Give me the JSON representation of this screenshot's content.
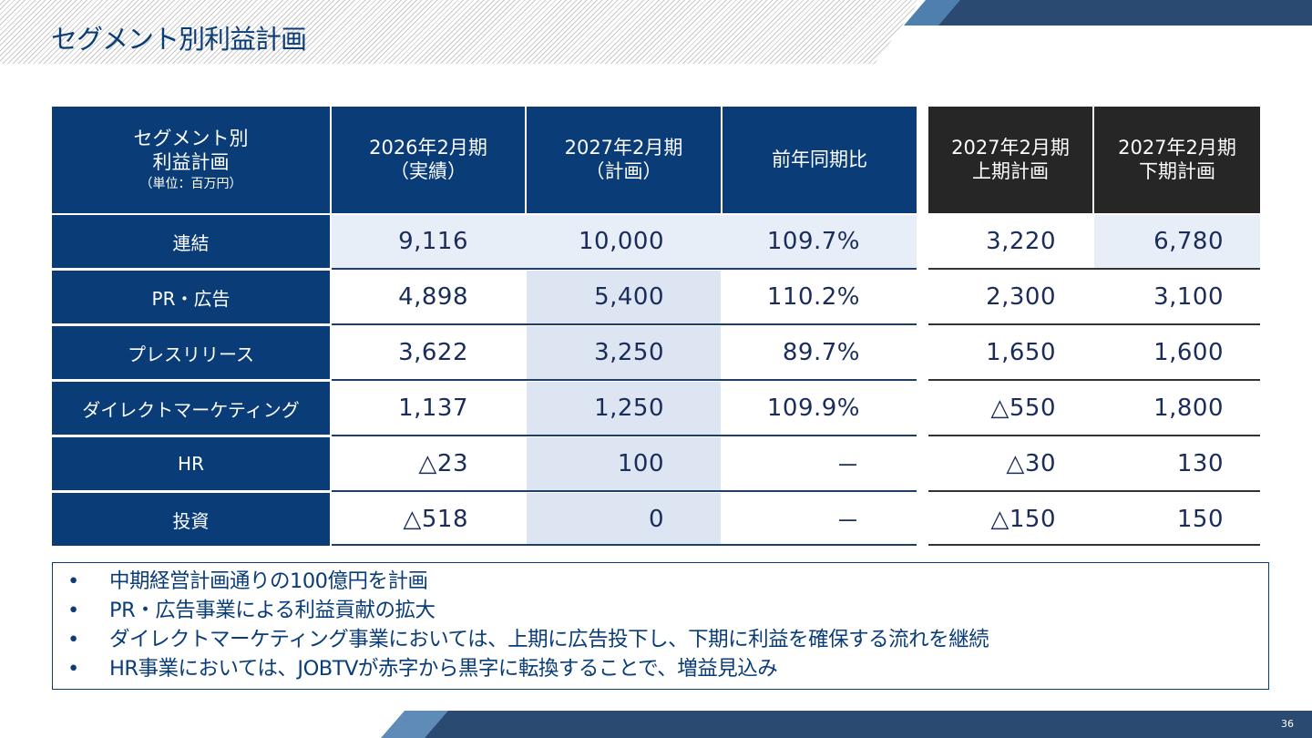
{
  "page": {
    "title": "セグメント別利益計画",
    "page_number": "36"
  },
  "table": {
    "headers": [
      {
        "lines": [
          "セグメント別",
          "利益計画"
        ],
        "note": "（単位：百万円）"
      },
      {
        "lines": [
          "2026年2月期",
          "（実績）"
        ]
      },
      {
        "lines": [
          "2027年2月期",
          "（計画）"
        ]
      },
      {
        "lines": [
          "前年同期比"
        ]
      },
      {
        "lines": [
          "2027年2月期",
          "上期計画"
        ]
      },
      {
        "lines": [
          "2027年2月期",
          "下期計画"
        ]
      }
    ],
    "rows": [
      {
        "label": "連結",
        "actual_2026": "9,116",
        "plan_2027": "10,000",
        "yoy": "109.7%",
        "h1": "3,220",
        "h2": "6,780"
      },
      {
        "label": "PR・広告",
        "actual_2026": "4,898",
        "plan_2027": "5,400",
        "yoy": "110.2%",
        "h1": "2,300",
        "h2": "3,100"
      },
      {
        "label": "プレスリリース",
        "actual_2026": "3,622",
        "plan_2027": "3,250",
        "yoy": "89.7%",
        "h1": "1,650",
        "h2": "1,600"
      },
      {
        "label": "ダイレクトマーケティング",
        "actual_2026": "1,137",
        "plan_2027": "1,250",
        "yoy": "109.9%",
        "h1": "△550",
        "h2": "1,800"
      },
      {
        "label": "HR",
        "actual_2026": "△23",
        "plan_2027": "100",
        "yoy": "－",
        "h1": "△30",
        "h2": "130"
      },
      {
        "label": "投資",
        "actual_2026": "△518",
        "plan_2027": "0",
        "yoy": "－",
        "h1": "△150",
        "h2": "150"
      }
    ]
  },
  "notes": [
    "中期経営計画通りの100億円を計画",
    "PR・広告事業による利益貢献の拡大",
    "ダイレクトマーケティング事業においては、上期に広告投下し、下期に利益を確保する流れを継続",
    "HR事業においては、JOBTVが赤字から黒字に転換することで、増益見込み"
  ],
  "colors": {
    "navy": "#0a3d78",
    "black_header": "#262626",
    "highlight_light": "#e8eef7",
    "highlight_plan_column": "#dce5f1",
    "decoration_dark": "#2a4a72",
    "decoration_light": "#5f8bb9"
  }
}
